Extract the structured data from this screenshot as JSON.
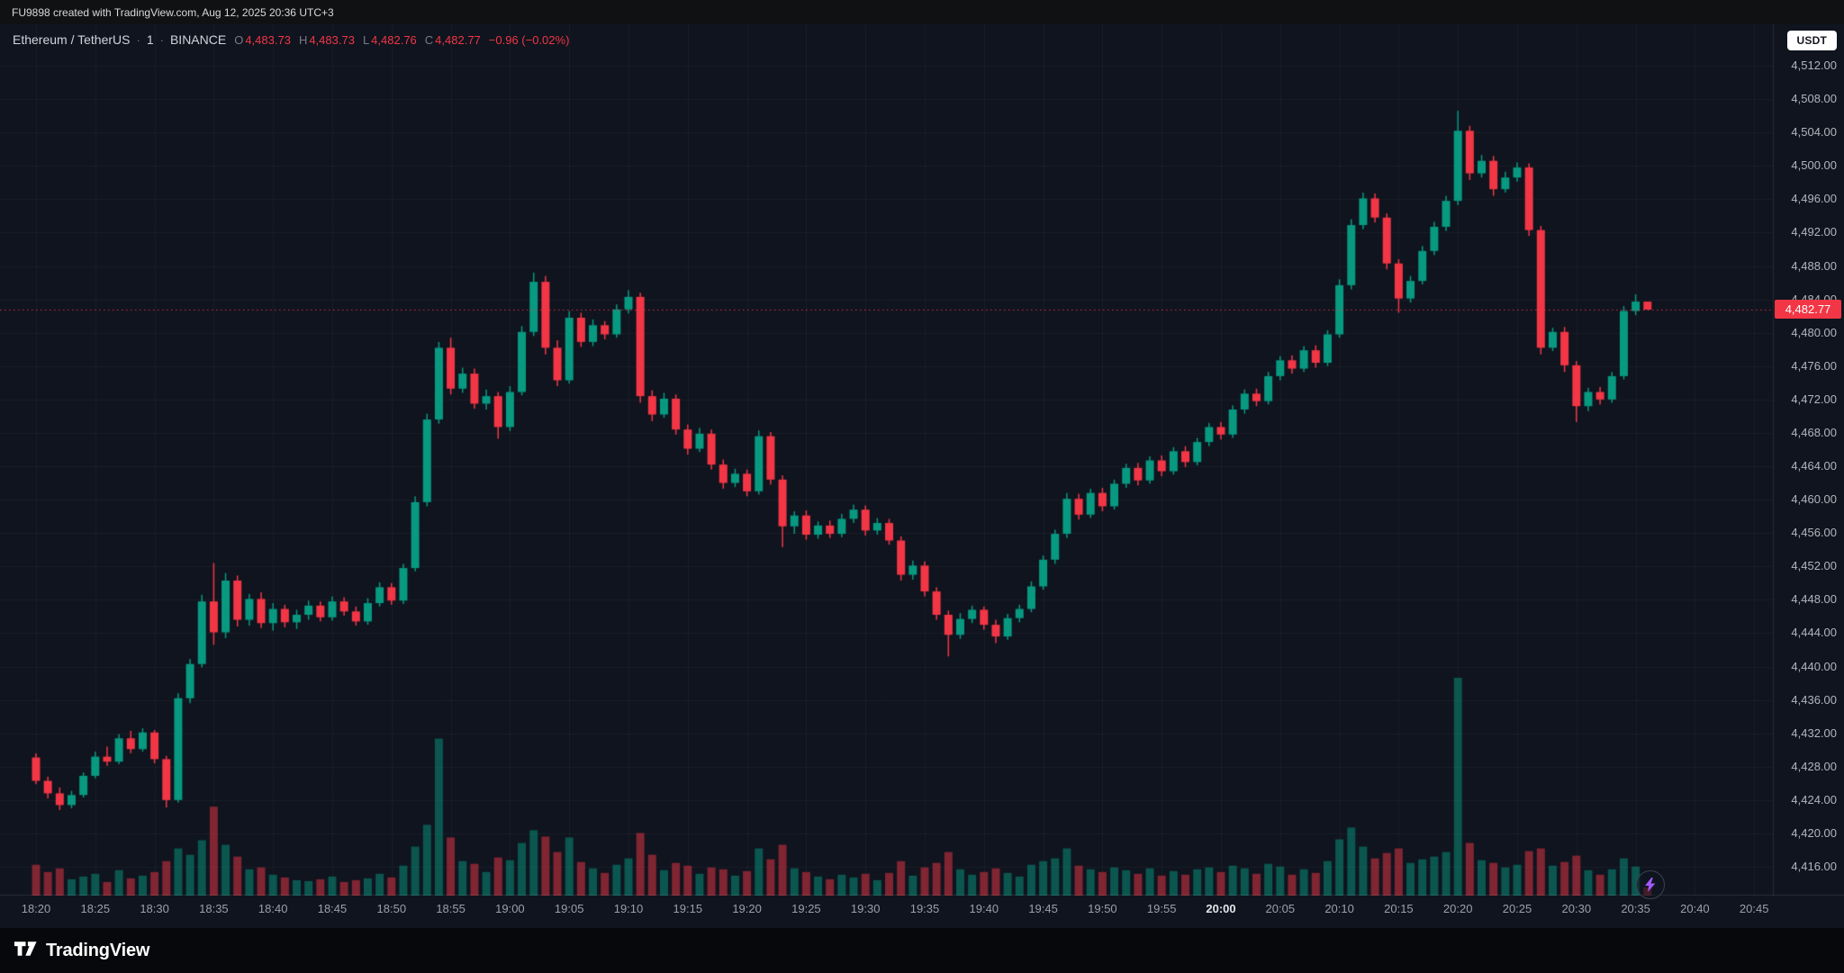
{
  "attribution": {
    "text": "FU9898 created with TradingView.com, Aug 12, 2025 20:36 UTC+3"
  },
  "legend": {
    "symbol": "Ethereum / TetherUS",
    "sep": "·",
    "interval": "1",
    "exchange": "BINANCE",
    "o_label": "O",
    "open": "4,483.73",
    "h_label": "H",
    "high": "4,483.73",
    "l_label": "L",
    "low": "4,482.76",
    "c_label": "C",
    "close": "4,482.77",
    "change": "−0.96 (−0.02%)"
  },
  "currency_button": "USDT",
  "price_axis": {
    "labels": [
      "4,512.00",
      "4,508.00",
      "4,504.00",
      "4,500.00",
      "4,496.00",
      "4,492.00",
      "4,488.00",
      "4,484.00",
      "4,480.00",
      "4,476.00",
      "4,472.00",
      "4,468.00",
      "4,464.00",
      "4,460.00",
      "4,456.00",
      "4,452.00",
      "4,448.00",
      "4,444.00",
      "4,440.00",
      "4,436.00",
      "4,432.00",
      "4,428.00",
      "4,424.00",
      "4,420.00",
      "4,416.00"
    ],
    "current_price": "4,482.77"
  },
  "time_axis": {
    "labels": [
      "18:20",
      "18:25",
      "18:30",
      "18:35",
      "18:40",
      "18:45",
      "18:50",
      "18:55",
      "19:00",
      "19:05",
      "19:10",
      "19:15",
      "19:20",
      "19:25",
      "19:30",
      "19:35",
      "19:40",
      "19:45",
      "19:50",
      "19:55",
      "20:00",
      "20:05",
      "20:10",
      "20:15",
      "20:20",
      "20:25",
      "20:30",
      "20:35",
      "20:40",
      "20:45"
    ],
    "highlighted": "20:00"
  },
  "logo": {
    "text": "TradingView"
  },
  "colors": {
    "up": "#089981",
    "down": "#f23645",
    "volume_up": "rgba(8,153,129,0.5)",
    "volume_down": "rgba(242,54,69,0.5)",
    "grid": "rgba(255,255,255,0.045)",
    "separator": "rgba(255,255,255,0.1)",
    "price_line": "rgba(242,54,69,0.9)",
    "bolt": "#a259ff"
  },
  "chart_data": {
    "type": "candlestick",
    "symbol": "Ethereum / TetherUS",
    "exchange": "BINANCE",
    "interval_minutes": 1,
    "quote_currency": "USDT",
    "ylim": [
      4416,
      4512
    ],
    "ytick_step": 4,
    "x_start": "18:20",
    "x_end": "20:47",
    "last_price": 4482.77,
    "price_line_style": "dotted",
    "columns": [
      "time",
      "open",
      "high",
      "low",
      "close",
      "volume"
    ],
    "candles": [
      [
        "18:20",
        4429.1,
        4429.6,
        4425.9,
        4426.3,
        340
      ],
      [
        "18:21",
        4426.3,
        4426.8,
        4424.2,
        4424.8,
        260
      ],
      [
        "18:22",
        4424.8,
        4425.5,
        4422.8,
        4423.4,
        300
      ],
      [
        "18:23",
        4423.4,
        4425.1,
        4423.0,
        4424.6,
        180
      ],
      [
        "18:24",
        4424.6,
        4427.3,
        4424.3,
        4426.9,
        210
      ],
      [
        "18:25",
        4426.9,
        4429.8,
        4426.6,
        4429.2,
        240
      ],
      [
        "18:26",
        4429.2,
        4430.4,
        4428.1,
        4428.6,
        150
      ],
      [
        "18:27",
        4428.6,
        4431.9,
        4428.3,
        4431.4,
        280
      ],
      [
        "18:28",
        4431.4,
        4432.3,
        4429.6,
        4430.1,
        190
      ],
      [
        "18:29",
        4430.1,
        4432.6,
        4429.8,
        4432.1,
        220
      ],
      [
        "18:30",
        4432.1,
        4432.4,
        4428.4,
        4428.9,
        260
      ],
      [
        "18:31",
        4428.9,
        4429.3,
        4423.1,
        4424.0,
        380
      ],
      [
        "18:32",
        4424.0,
        4436.8,
        4423.7,
        4436.2,
        520
      ],
      [
        "18:33",
        4436.2,
        4440.9,
        4435.6,
        4440.3,
        450
      ],
      [
        "18:34",
        4440.3,
        4448.6,
        4439.9,
        4447.8,
        610
      ],
      [
        "18:35",
        4447.8,
        4452.4,
        4442.6,
        4444.1,
        980
      ],
      [
        "18:36",
        4444.1,
        4451.2,
        4443.4,
        4450.3,
        560
      ],
      [
        "18:37",
        4450.3,
        4450.9,
        4444.8,
        4445.6,
        430
      ],
      [
        "18:38",
        4445.6,
        4448.7,
        4444.9,
        4448.1,
        290
      ],
      [
        "18:39",
        4448.1,
        4448.9,
        4444.6,
        4445.2,
        310
      ],
      [
        "18:40",
        4445.2,
        4447.6,
        4444.3,
        4446.9,
        230
      ],
      [
        "18:41",
        4446.9,
        4447.4,
        4444.7,
        4445.3,
        200
      ],
      [
        "18:42",
        4445.3,
        4446.8,
        4444.5,
        4446.2,
        170
      ],
      [
        "18:43",
        4446.2,
        4447.9,
        4445.6,
        4447.3,
        160
      ],
      [
        "18:44",
        4447.3,
        4447.8,
        4445.4,
        4445.9,
        180
      ],
      [
        "18:45",
        4445.9,
        4448.4,
        4445.5,
        4447.8,
        210
      ],
      [
        "18:46",
        4447.8,
        4448.3,
        4446.1,
        4446.6,
        150
      ],
      [
        "18:47",
        4446.6,
        4447.2,
        4444.9,
        4445.4,
        170
      ],
      [
        "18:48",
        4445.4,
        4448.2,
        4445.0,
        4447.6,
        190
      ],
      [
        "18:49",
        4447.6,
        4450.1,
        4447.2,
        4449.5,
        240
      ],
      [
        "18:50",
        4449.5,
        4450.0,
        4447.4,
        4447.9,
        200
      ],
      [
        "18:51",
        4447.9,
        4452.3,
        4447.5,
        4451.8,
        330
      ],
      [
        "18:52",
        4451.8,
        4460.4,
        4451.4,
        4459.7,
        540
      ],
      [
        "18:53",
        4459.7,
        4470.3,
        4459.2,
        4469.6,
        780
      ],
      [
        "18:54",
        4469.6,
        4478.9,
        4469.1,
        4478.2,
        1730
      ],
      [
        "18:55",
        4478.2,
        4479.4,
        4472.6,
        4473.3,
        640
      ],
      [
        "18:56",
        4473.3,
        4475.8,
        4472.8,
        4475.1,
        380
      ],
      [
        "18:57",
        4475.1,
        4475.7,
        4470.9,
        4471.5,
        350
      ],
      [
        "18:58",
        4471.5,
        4473.2,
        4470.8,
        4472.4,
        260
      ],
      [
        "18:59",
        4472.4,
        4472.9,
        4467.3,
        4468.7,
        420
      ],
      [
        "19:00",
        4468.7,
        4473.6,
        4468.2,
        4472.9,
        390
      ],
      [
        "19:01",
        4472.9,
        4480.8,
        4472.5,
        4480.1,
        580
      ],
      [
        "19:02",
        4480.1,
        4487.2,
        4479.6,
        4486.1,
        720
      ],
      [
        "19:03",
        4486.1,
        4486.8,
        4477.4,
        4478.2,
        650
      ],
      [
        "19:04",
        4478.2,
        4479.1,
        4473.6,
        4474.3,
        480
      ],
      [
        "19:05",
        4474.3,
        4482.6,
        4473.9,
        4481.8,
        640
      ],
      [
        "19:06",
        4481.8,
        4482.4,
        4478.3,
        4478.9,
        370
      ],
      [
        "19:07",
        4478.9,
        4481.6,
        4478.4,
        4480.9,
        300
      ],
      [
        "19:08",
        4480.9,
        4481.4,
        4479.2,
        4479.8,
        250
      ],
      [
        "19:09",
        4479.8,
        4483.4,
        4479.4,
        4482.8,
        340
      ],
      [
        "19:10",
        4482.8,
        4485.1,
        4482.3,
        4484.3,
        410
      ],
      [
        "19:11",
        4484.3,
        4484.8,
        4471.6,
        4472.4,
        690
      ],
      [
        "19:12",
        4472.4,
        4473.1,
        4469.4,
        4470.2,
        450
      ],
      [
        "19:13",
        4470.2,
        4472.8,
        4469.8,
        4472.1,
        280
      ],
      [
        "19:14",
        4472.1,
        4472.6,
        4467.8,
        4468.4,
        360
      ],
      [
        "19:15",
        4468.4,
        4469.0,
        4465.4,
        4466.1,
        330
      ],
      [
        "19:16",
        4466.1,
        4468.6,
        4465.7,
        4467.9,
        240
      ],
      [
        "19:17",
        4467.9,
        4468.4,
        4463.6,
        4464.2,
        310
      ],
      [
        "19:18",
        4464.2,
        4464.8,
        4461.3,
        4462.0,
        290
      ],
      [
        "19:19",
        4462.0,
        4463.7,
        4461.5,
        4463.1,
        220
      ],
      [
        "19:20",
        4463.1,
        4463.6,
        4460.4,
        4461.0,
        270
      ],
      [
        "19:21",
        4461.0,
        4468.3,
        4460.6,
        4467.6,
        520
      ],
      [
        "19:22",
        4467.6,
        4468.1,
        4461.8,
        4462.4,
        400
      ],
      [
        "19:23",
        4462.4,
        4462.9,
        4454.3,
        4456.8,
        560
      ],
      [
        "19:24",
        4456.8,
        4458.6,
        4455.9,
        4458.1,
        300
      ],
      [
        "19:25",
        4458.1,
        4458.7,
        4455.2,
        4455.8,
        260
      ],
      [
        "19:26",
        4455.8,
        4457.4,
        4455.3,
        4456.9,
        210
      ],
      [
        "19:27",
        4456.9,
        4457.5,
        4455.4,
        4455.9,
        180
      ],
      [
        "19:28",
        4455.9,
        4458.3,
        4455.5,
        4457.7,
        230
      ],
      [
        "19:29",
        4457.7,
        4459.4,
        4457.2,
        4458.8,
        200
      ],
      [
        "19:30",
        4458.8,
        4459.3,
        4455.7,
        4456.3,
        240
      ],
      [
        "19:31",
        4456.3,
        4457.8,
        4455.8,
        4457.2,
        170
      ],
      [
        "19:32",
        4457.2,
        4457.7,
        4454.6,
        4455.1,
        250
      ],
      [
        "19:33",
        4455.1,
        4455.6,
        4450.3,
        4451.0,
        380
      ],
      [
        "19:34",
        4451.0,
        4452.7,
        4450.4,
        4452.1,
        220
      ],
      [
        "19:35",
        4452.1,
        4452.6,
        4448.4,
        4449.0,
        310
      ],
      [
        "19:36",
        4449.0,
        4449.5,
        4445.6,
        4446.2,
        360
      ],
      [
        "19:37",
        4446.2,
        4446.7,
        4441.2,
        4443.8,
        480
      ],
      [
        "19:38",
        4443.8,
        4446.4,
        4443.3,
        4445.7,
        290
      ],
      [
        "19:39",
        4445.7,
        4447.3,
        4445.2,
        4446.8,
        230
      ],
      [
        "19:40",
        4446.8,
        4447.2,
        4444.4,
        4445.0,
        260
      ],
      [
        "19:41",
        4445.0,
        4445.6,
        4442.8,
        4443.6,
        300
      ],
      [
        "19:42",
        4443.6,
        4446.3,
        4443.2,
        4445.8,
        250
      ],
      [
        "19:43",
        4445.8,
        4447.4,
        4445.3,
        4446.9,
        210
      ],
      [
        "19:44",
        4446.9,
        4450.2,
        4446.5,
        4449.6,
        340
      ],
      [
        "19:45",
        4449.6,
        4453.3,
        4449.2,
        4452.8,
        380
      ],
      [
        "19:46",
        4452.8,
        4456.4,
        4452.3,
        4455.9,
        410
      ],
      [
        "19:47",
        4455.9,
        4460.8,
        4455.4,
        4460.1,
        520
      ],
      [
        "19:48",
        4460.1,
        4460.7,
        4457.6,
        4458.2,
        330
      ],
      [
        "19:49",
        4458.2,
        4461.3,
        4457.8,
        4460.8,
        290
      ],
      [
        "19:50",
        4460.8,
        4461.4,
        4458.6,
        4459.2,
        260
      ],
      [
        "19:51",
        4459.2,
        4462.4,
        4458.8,
        4461.9,
        310
      ],
      [
        "19:52",
        4461.9,
        4464.3,
        4461.4,
        4463.8,
        280
      ],
      [
        "19:53",
        4463.8,
        4464.4,
        4461.7,
        4462.3,
        240
      ],
      [
        "19:54",
        4462.3,
        4465.2,
        4461.9,
        4464.7,
        300
      ],
      [
        "19:55",
        4464.7,
        4465.3,
        4462.8,
        4463.4,
        220
      ],
      [
        "19:56",
        4463.4,
        4466.3,
        4463.0,
        4465.8,
        270
      ],
      [
        "19:57",
        4465.8,
        4466.4,
        4463.9,
        4464.5,
        230
      ],
      [
        "19:58",
        4464.5,
        4467.4,
        4464.1,
        4466.9,
        290
      ],
      [
        "19:59",
        4466.9,
        4469.2,
        4466.4,
        4468.7,
        310
      ],
      [
        "20:00",
        4468.7,
        4469.3,
        4467.2,
        4467.8,
        260
      ],
      [
        "20:01",
        4467.8,
        4471.3,
        4467.4,
        4470.8,
        330
      ],
      [
        "20:02",
        4470.8,
        4473.2,
        4470.3,
        4472.7,
        300
      ],
      [
        "20:03",
        4472.7,
        4473.3,
        4471.2,
        4471.8,
        240
      ],
      [
        "20:04",
        4471.8,
        4475.3,
        4471.4,
        4474.8,
        350
      ],
      [
        "20:05",
        4474.8,
        4477.2,
        4474.3,
        4476.7,
        320
      ],
      [
        "20:06",
        4476.7,
        4477.3,
        4475.1,
        4475.7,
        230
      ],
      [
        "20:07",
        4475.7,
        4478.4,
        4475.3,
        4477.9,
        290
      ],
      [
        "20:08",
        4477.9,
        4478.5,
        4475.8,
        4476.4,
        250
      ],
      [
        "20:09",
        4476.4,
        4480.3,
        4476.0,
        4479.8,
        380
      ],
      [
        "20:10",
        4479.8,
        4486.4,
        4479.4,
        4485.7,
        620
      ],
      [
        "20:11",
        4485.7,
        4493.6,
        4485.2,
        4492.9,
        750
      ],
      [
        "20:12",
        4492.9,
        4496.8,
        4492.4,
        4496.1,
        540
      ],
      [
        "20:13",
        4496.1,
        4496.7,
        4493.2,
        4493.8,
        410
      ],
      [
        "20:14",
        4493.8,
        4494.3,
        4487.6,
        4488.3,
        470
      ],
      [
        "20:15",
        4488.3,
        4488.8,
        4482.4,
        4484.1,
        520
      ],
      [
        "20:16",
        4484.1,
        4486.8,
        4483.6,
        4486.2,
        360
      ],
      [
        "20:17",
        4486.2,
        4490.4,
        4485.8,
        4489.8,
        400
      ],
      [
        "20:18",
        4489.8,
        4493.3,
        4489.3,
        4492.7,
        430
      ],
      [
        "20:19",
        4492.7,
        4496.4,
        4492.2,
        4495.8,
        480
      ],
      [
        "20:20",
        4495.8,
        4506.6,
        4495.3,
        4504.2,
        2400
      ],
      [
        "20:21",
        4504.2,
        4504.8,
        4498.3,
        4499.1,
        580
      ],
      [
        "20:22",
        4499.1,
        4501.3,
        4498.6,
        4500.6,
        390
      ],
      [
        "20:23",
        4500.6,
        4501.2,
        4496.4,
        4497.2,
        360
      ],
      [
        "20:24",
        4497.2,
        4499.3,
        4496.8,
        4498.6,
        310
      ],
      [
        "20:25",
        4498.6,
        4500.4,
        4498.1,
        4499.8,
        340
      ],
      [
        "20:26",
        4499.8,
        4500.3,
        4491.6,
        4492.3,
        490
      ],
      [
        "20:27",
        4492.3,
        4492.8,
        4477.4,
        4478.2,
        520
      ],
      [
        "20:28",
        4478.2,
        4480.6,
        4477.8,
        4480.1,
        330
      ],
      [
        "20:29",
        4480.1,
        4480.7,
        4475.3,
        4476.1,
        370
      ],
      [
        "20:30",
        4476.1,
        4476.6,
        4469.3,
        4471.2,
        440
      ],
      [
        "20:31",
        4471.2,
        4473.4,
        4470.6,
        4472.9,
        280
      ],
      [
        "20:32",
        4472.9,
        4473.5,
        4471.4,
        4472.0,
        230
      ],
      [
        "20:33",
        4472.0,
        4475.3,
        4471.6,
        4474.8,
        290
      ],
      [
        "20:34",
        4474.8,
        4483.2,
        4474.4,
        4482.6,
        410
      ],
      [
        "20:35",
        4482.6,
        4484.6,
        4482.1,
        4483.73,
        320
      ],
      [
        "20:36",
        4483.73,
        4483.73,
        4482.76,
        4482.77,
        90
      ]
    ]
  }
}
